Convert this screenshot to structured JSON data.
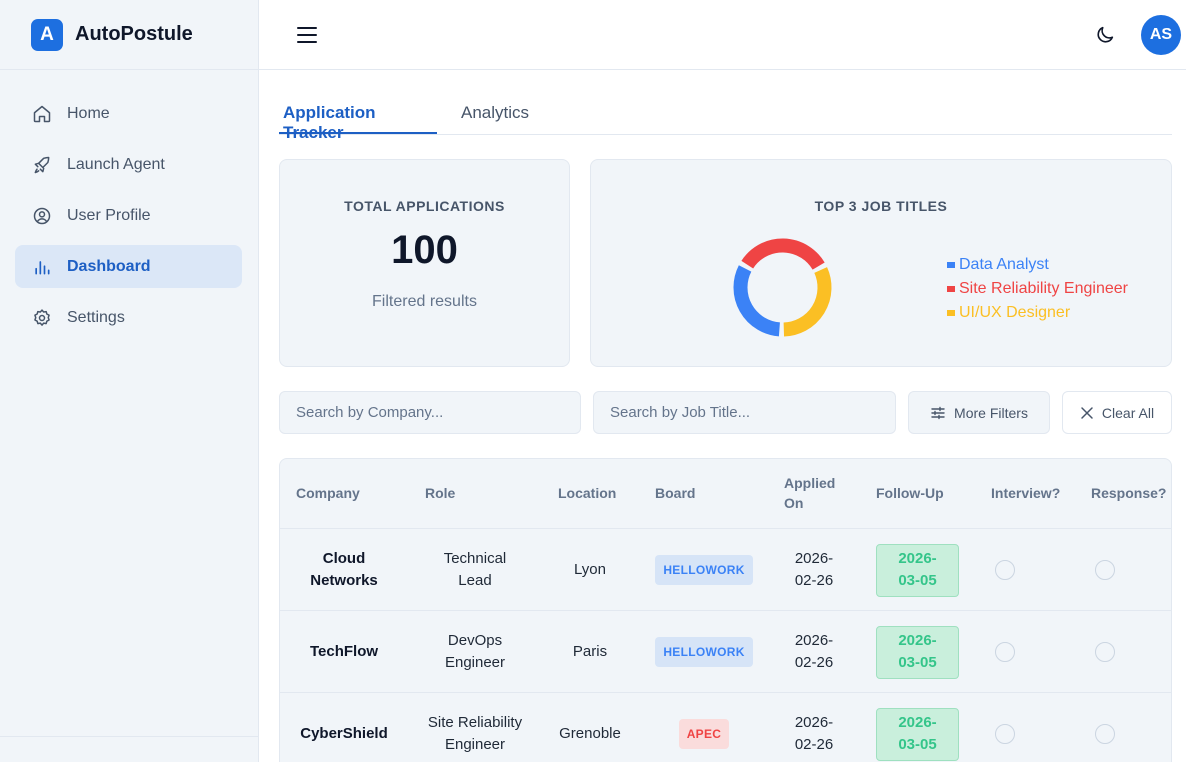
{
  "app": {
    "logo_letter": "A",
    "name": "AutoPostule"
  },
  "sidebar": {
    "items": [
      {
        "label": "Home",
        "icon": "home-icon",
        "active": false
      },
      {
        "label": "Launch Agent",
        "icon": "rocket-icon",
        "active": false
      },
      {
        "label": "User Profile",
        "icon": "user-circle-icon",
        "active": false
      },
      {
        "label": "Dashboard",
        "icon": "bar-chart-icon",
        "active": true
      },
      {
        "label": "Settings",
        "icon": "gear-icon",
        "active": false
      }
    ]
  },
  "header": {
    "avatar_initials": "AS"
  },
  "tabs": [
    {
      "label": "Application Tracker",
      "active": true
    },
    {
      "label": "Analytics",
      "active": false
    }
  ],
  "stats": {
    "total_label": "TOTAL APPLICATIONS",
    "total_value": "100",
    "total_sub": "Filtered results",
    "top_label": "TOP 3 JOB TITLES"
  },
  "chart_data": {
    "type": "pie",
    "title": "TOP 3 JOB TITLES",
    "labels": [
      "Data Analyst",
      "Site Reliability Engineer",
      "UI/UX Designer"
    ],
    "values": [
      33,
      34,
      33
    ],
    "colors": [
      "#3b82f6",
      "#ef4444",
      "#fbbf24"
    ],
    "donut": true,
    "legend_position": "right"
  },
  "filters": {
    "company_placeholder": "Search by Company...",
    "job_placeholder": "Search by Job Title...",
    "more_filters": "More Filters",
    "clear_all": "Clear All"
  },
  "table": {
    "headers": {
      "company": "Company",
      "role": "Role",
      "location": "Location",
      "board": "Board",
      "applied_line1": "Applied",
      "applied_line2": "On",
      "followup": "Follow-Up",
      "interview": "Interview?",
      "response": "Response?"
    },
    "rows": [
      {
        "company_l1": "Cloud",
        "company_l2": "Networks",
        "role_l1": "Technical",
        "role_l2": "Lead",
        "location": "Lyon",
        "board": "HELLOWORK",
        "board_color": "#3b82f6",
        "board_bg": "#d6e4f7",
        "applied_l1": "2026-",
        "applied_l2": "02-26",
        "followup_l1": "2026-",
        "followup_l2": "03-05"
      },
      {
        "company_l1": "TechFlow",
        "company_l2": "",
        "role_l1": "DevOps",
        "role_l2": "Engineer",
        "location": "Paris",
        "board": "HELLOWORK",
        "board_color": "#3b82f6",
        "board_bg": "#d6e4f7",
        "applied_l1": "2026-",
        "applied_l2": "02-26",
        "followup_l1": "2026-",
        "followup_l2": "03-05"
      },
      {
        "company_l1": "CyberShield",
        "company_l2": "",
        "role_l1": "Site Reliability",
        "role_l2": "Engineer",
        "location": "Grenoble",
        "board": "APEC",
        "board_color": "#ef4444",
        "board_bg": "#fadcdc",
        "applied_l1": "2026-",
        "applied_l2": "02-26",
        "followup_l1": "2026-",
        "followup_l2": "03-05"
      }
    ]
  }
}
